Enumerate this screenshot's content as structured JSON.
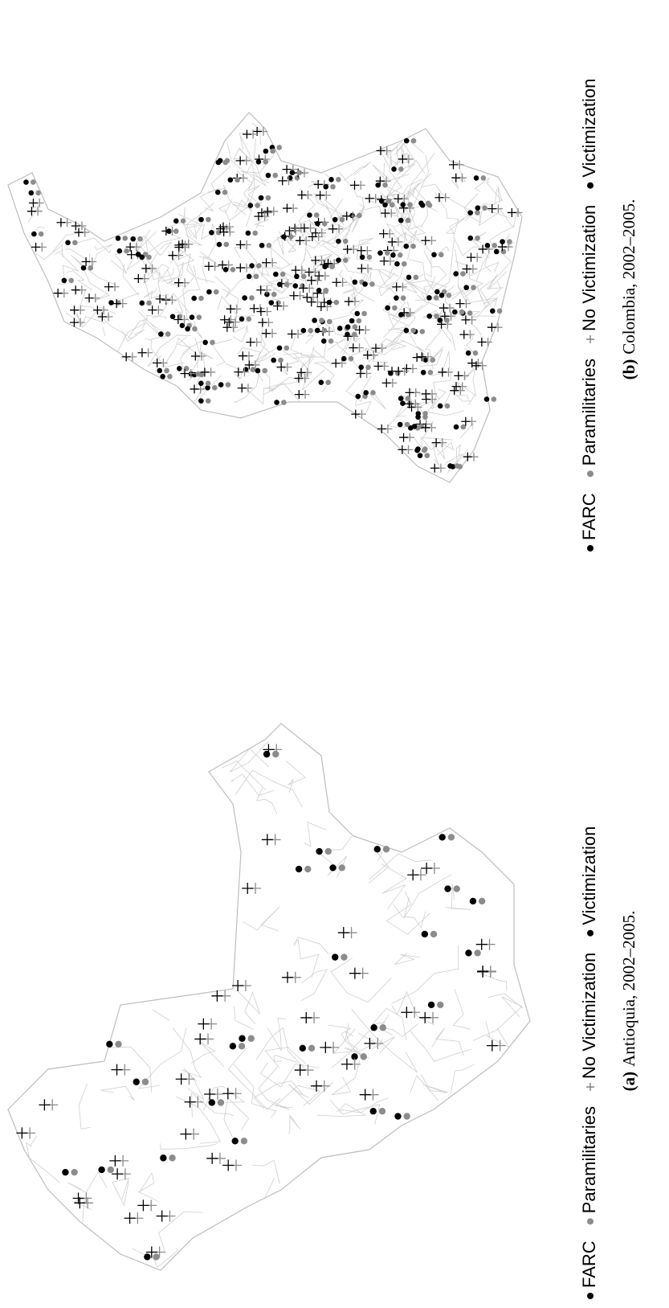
{
  "panels": [
    {
      "legend": [
        "FARC",
        "Paramilitaries",
        "No Victimization",
        "Victimization"
      ],
      "caption": {
        "label": "(a)",
        "text": "Antioquia, 2002–2005."
      }
    },
    {
      "legend": [
        "FARC",
        "Paramilitaries",
        "No Victimization",
        "Victimization"
      ],
      "caption": {
        "label": "(b)",
        "text": "Colombia, 2002–2005."
      }
    }
  ]
}
